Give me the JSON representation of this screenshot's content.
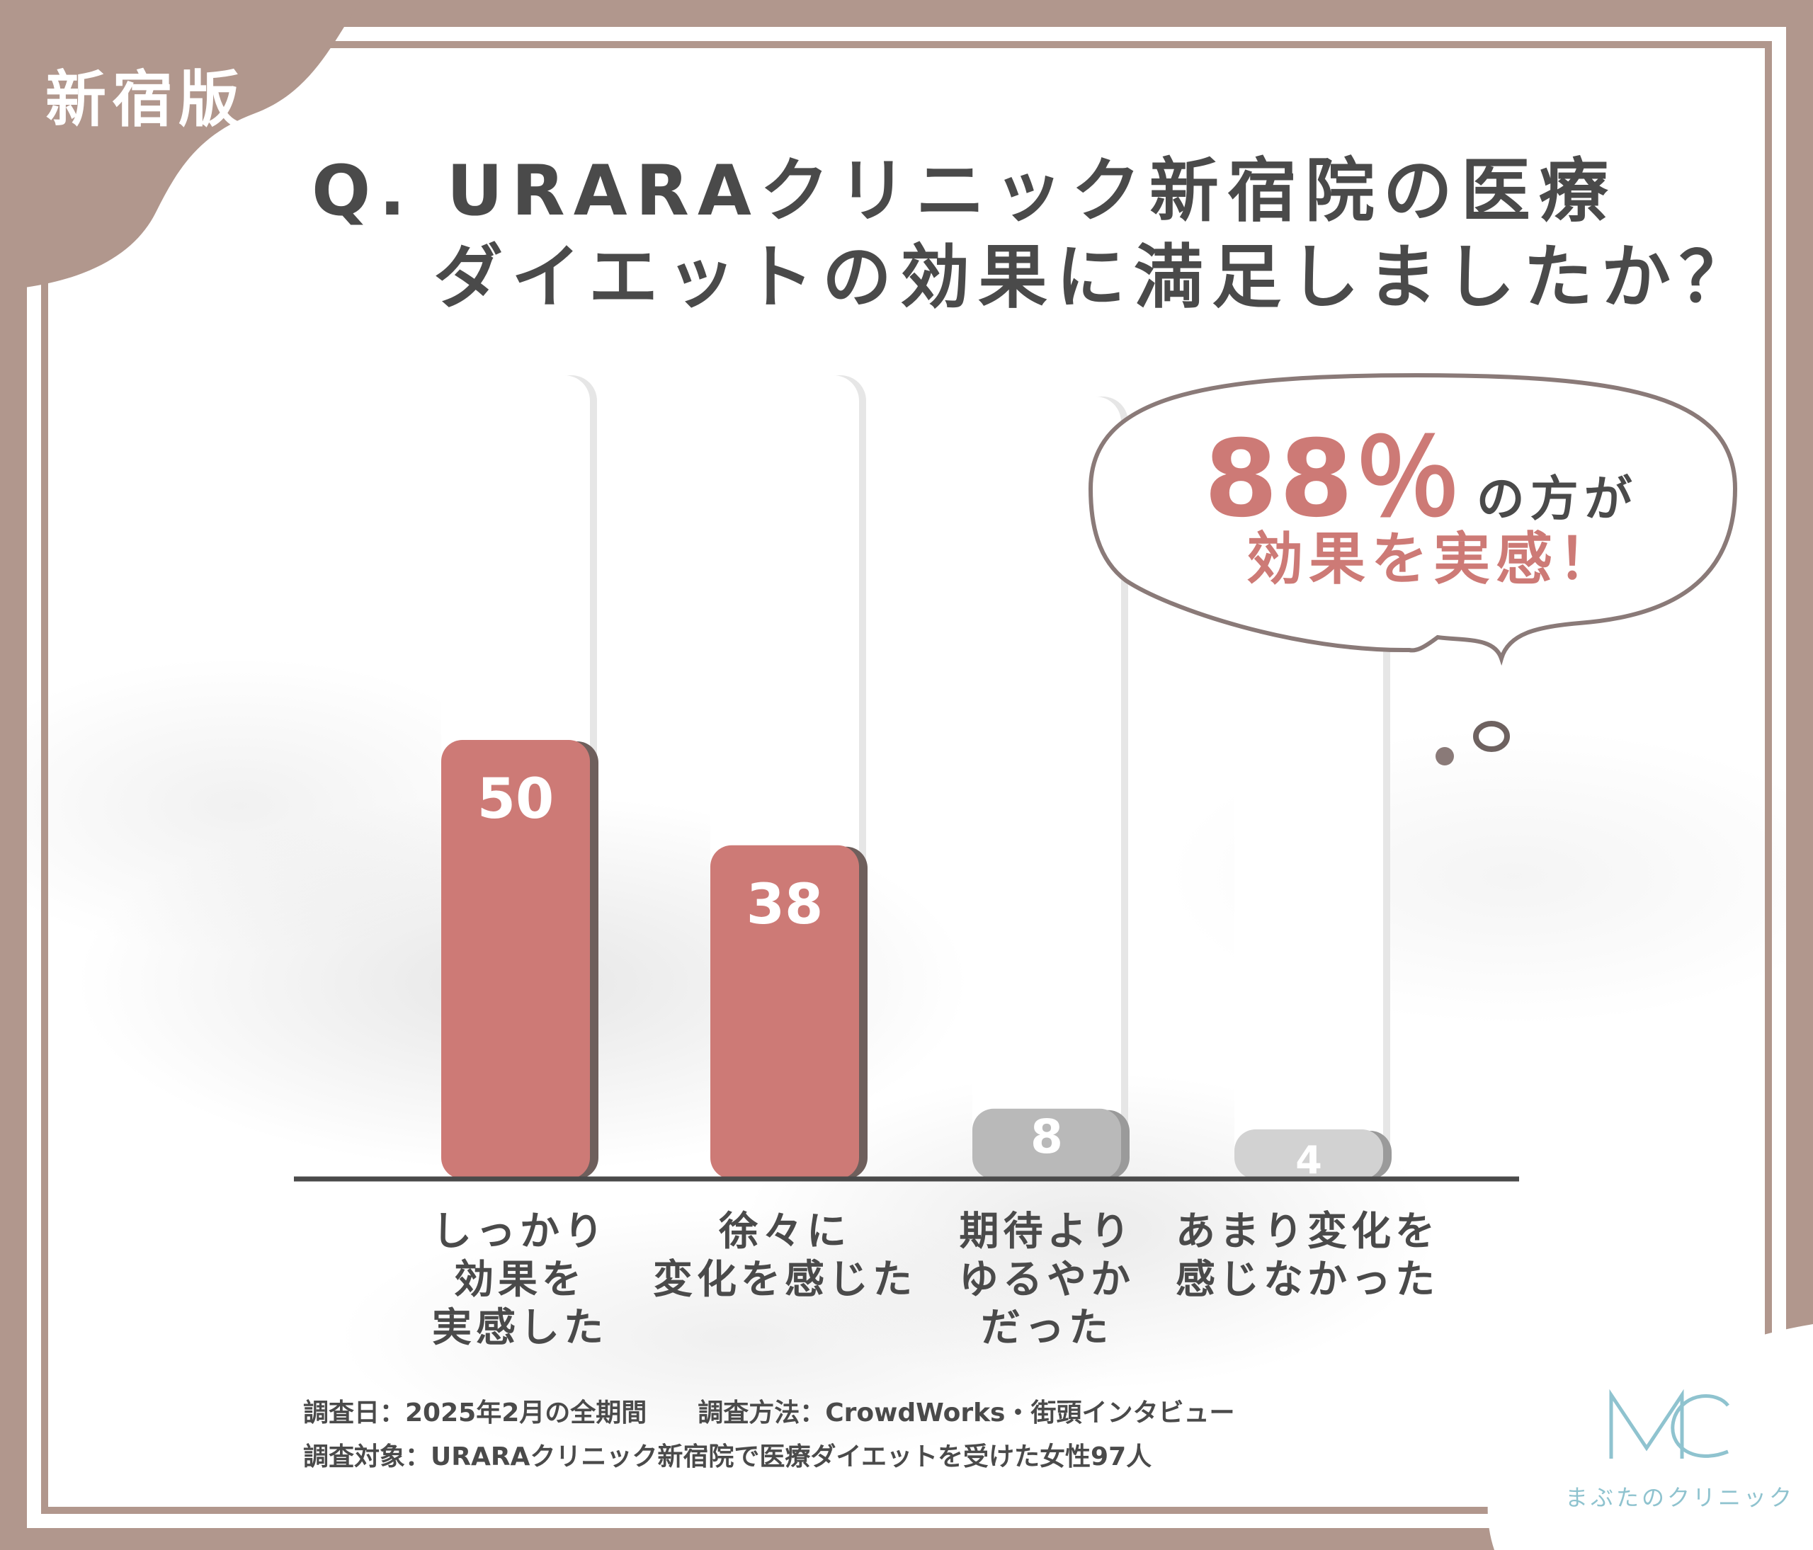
{
  "region_tag": "新宿版",
  "title": {
    "line1": "Q. URARAクリニック新宿院の医療",
    "line2": "ダイエットの効果に満足しましたか？"
  },
  "callout": {
    "percent": "88％",
    "suffix": "の方が",
    "line2": "効果を実感！"
  },
  "chart_data": {
    "type": "bar",
    "categories": [
      "しっかり\n効果を\n実感した",
      "徐々に\n変化を感じた",
      "期待より\nゆるやか\nだった",
      "あまり変化を\n感じなかった"
    ],
    "values": [
      50,
      38,
      8,
      4
    ],
    "value_labels": [
      "50",
      "38",
      "8",
      "4"
    ],
    "ylim": [
      0,
      100
    ],
    "title": "",
    "xlabel": "",
    "ylabel": "",
    "grid": false,
    "colors": [
      "#cd7a76",
      "#cd7a76",
      "#b9b9b9",
      "#d2d2d2"
    ]
  },
  "notes": {
    "line1": "調査日：2025年2月の全期間　　調査方法：CrowdWorks・街頭インタビュー",
    "line2": "調査対象：URARAクリニック新宿院で医療ダイエットを受けた女性97人"
  },
  "logo": {
    "mark": "MC",
    "text": "まぶたのクリニック"
  },
  "colors": {
    "frame": "#b1978d",
    "accent": "#cd7a76",
    "text": "#4a4a4a",
    "logo": "#8fc3cf"
  }
}
